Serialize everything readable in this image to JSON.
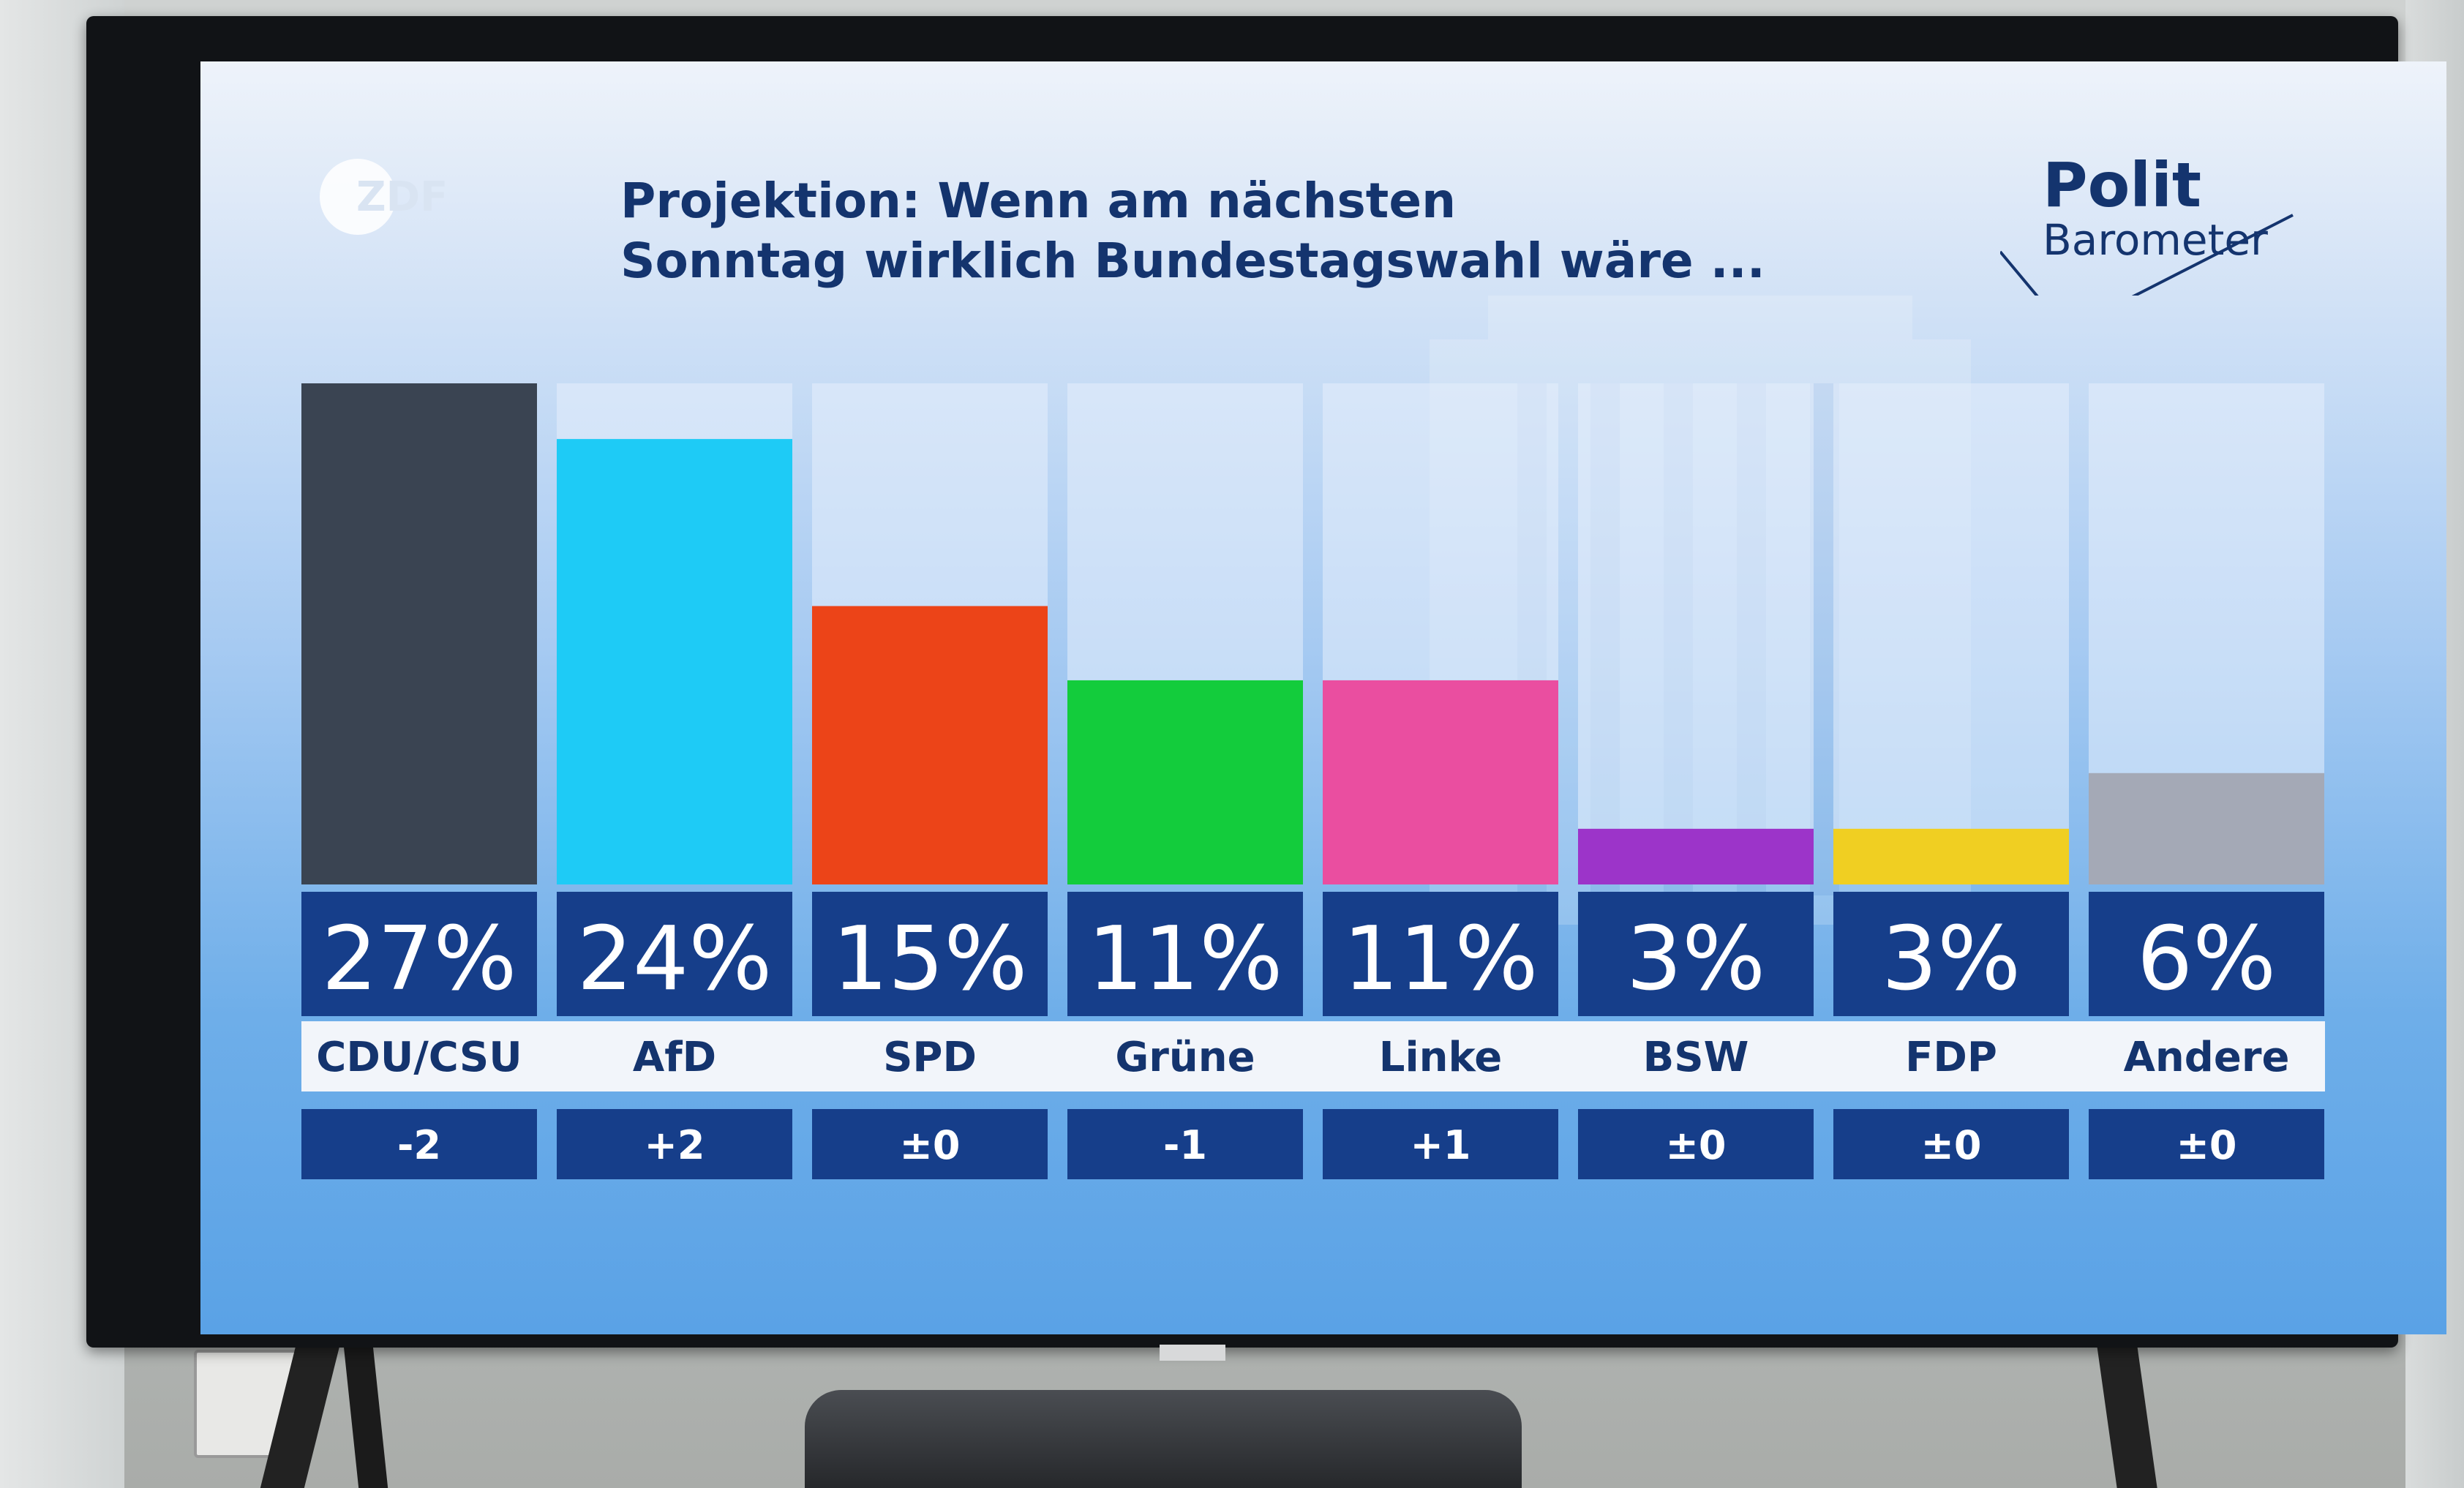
{
  "broadcaster_logo": "ZDF",
  "title_lines": [
    "Projektion: Wenn am nächsten",
    "Sonntag wirklich Bundestagswahl wäre ..."
  ],
  "brand": {
    "line1": "Polit",
    "line2": "Barometer"
  },
  "colors": {
    "text_dark": "#14346e",
    "value_box": "#163e8a",
    "label_strip": "#f2f5fa",
    "column_track": "#e6eefb"
  },
  "chart_data": {
    "type": "bar",
    "categories": [
      "CDU/CSU",
      "AfD",
      "SPD",
      "Grüne",
      "Linke",
      "BSW",
      "FDP",
      "Andere"
    ],
    "values": [
      27,
      24,
      15,
      11,
      11,
      3,
      3,
      6
    ],
    "value_labels": [
      "27%",
      "24%",
      "15%",
      "11%",
      "11%",
      "3%",
      "3%",
      "6%"
    ],
    "changes": [
      "-2",
      "+2",
      "±0",
      "-1",
      "+1",
      "±0",
      "±0",
      "±0"
    ],
    "bar_colors": [
      "#3a4452",
      "#1ecbf6",
      "#ec4418",
      "#13cc3c",
      "#ea4ea0",
      "#9c34c9",
      "#f0cf22",
      "#a4a9b6"
    ],
    "ylim": [
      0,
      27
    ],
    "grid": false,
    "legend": "none",
    "title": "Projektion: Wenn am nächsten Sonntag wirklich Bundestagswahl wäre ...",
    "xlabel": "",
    "ylabel": ""
  }
}
